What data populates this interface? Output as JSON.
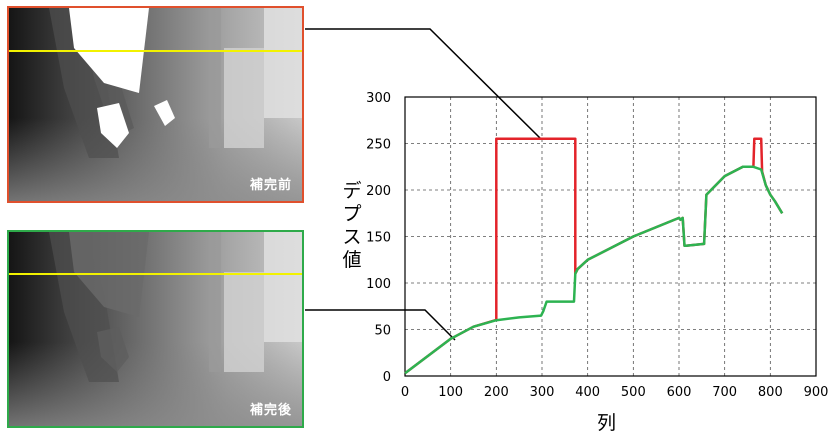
{
  "panels": {
    "before_label": "補完前",
    "after_label": "補完後",
    "before_border_color": "#e0502d",
    "after_border_color": "#2eaa4a",
    "scanline_color": "#f2f200"
  },
  "chart_data": {
    "type": "line",
    "xlabel": "列",
    "ylabel": "デプス値",
    "xlim": [
      0,
      900
    ],
    "ylim": [
      0,
      300
    ],
    "xticks": [
      0,
      100,
      200,
      300,
      400,
      500,
      600,
      700,
      800,
      900
    ],
    "yticks": [
      0,
      50,
      100,
      150,
      200,
      250,
      300
    ],
    "grid": true,
    "series": [
      {
        "color": "#e3232a",
        "x": [
          0,
          100,
          150,
          198,
          200,
          200,
          373,
          373,
          378,
          400,
          500,
          600,
          603,
          608,
          612,
          615,
          655,
          660,
          700,
          740,
          763,
          765,
          780,
          782,
          790,
          800,
          810,
          826
        ],
        "y": [
          3,
          40,
          53,
          60,
          60,
          255,
          255,
          110,
          115,
          125,
          150,
          170,
          168,
          170,
          140,
          140,
          142,
          195,
          215,
          225,
          225,
          255,
          255,
          220,
          205,
          195,
          188,
          175
        ]
      },
      {
        "color": "#2db351",
        "x": [
          0,
          100,
          150,
          200,
          250,
          298,
          303,
          310,
          370,
          373,
          378,
          400,
          500,
          600,
          603,
          608,
          612,
          615,
          655,
          660,
          700,
          740,
          763,
          780,
          790,
          800,
          810,
          826
        ],
        "y": [
          3,
          40,
          53,
          60,
          63,
          65,
          70,
          80,
          80,
          110,
          115,
          125,
          150,
          170,
          168,
          170,
          140,
          140,
          142,
          195,
          215,
          225,
          225,
          222,
          205,
          195,
          188,
          175
        ]
      }
    ]
  }
}
